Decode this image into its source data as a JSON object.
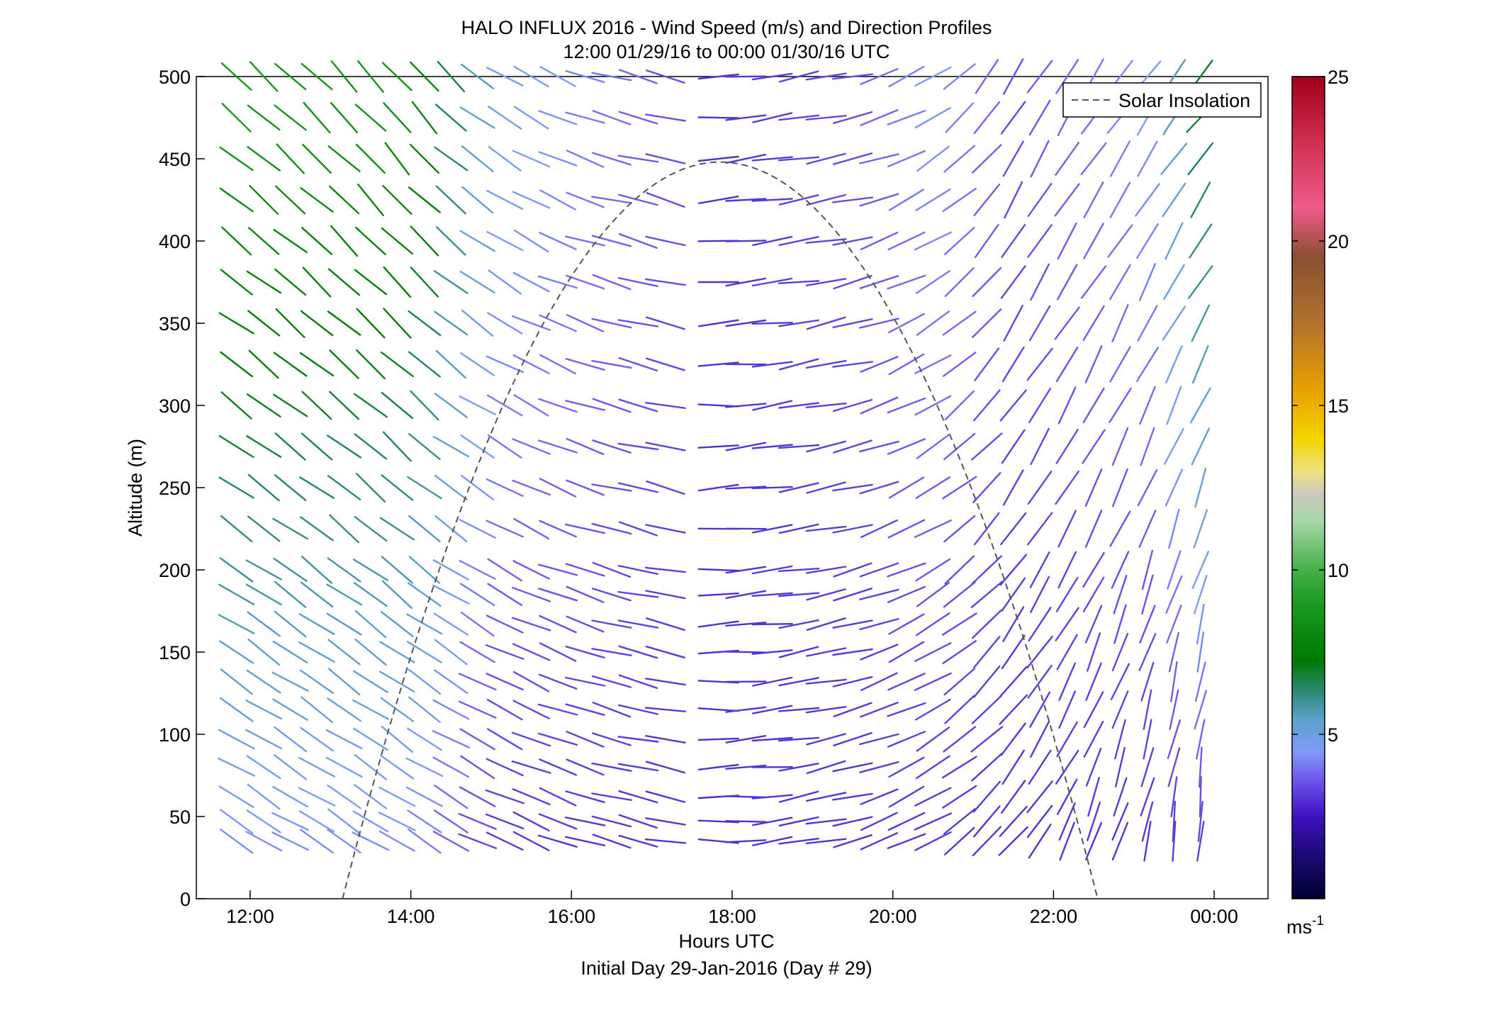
{
  "chart_data": {
    "type": "quiver",
    "title": "HALO INFLUX 2016 - Wind Speed (m/s) and Direction Profiles",
    "subtitle": "12:00 01/29/16 to 00:00 01/30/16  UTC",
    "xlabel": "Hours UTC",
    "xlabel2": "Initial Day 29-Jan-2016 (Day # 29)",
    "ylabel": "Altitude (m)",
    "xlim": [
      11.33,
      24.67
    ],
    "ylim": [
      0,
      500
    ],
    "x_ticks": [
      12,
      14,
      16,
      18,
      20,
      22,
      24
    ],
    "x_tick_labels": [
      "12:00",
      "14:00",
      "16:00",
      "18:00",
      "20:00",
      "22:00",
      "00:00"
    ],
    "y_ticks": [
      0,
      50,
      100,
      150,
      200,
      250,
      300,
      350,
      400,
      450,
      500
    ],
    "y_tick_labels": [
      "0",
      "50",
      "100",
      "150",
      "200",
      "250",
      "300",
      "350",
      "400",
      "450",
      "500"
    ],
    "colorbar": {
      "range": [
        0,
        25
      ],
      "ticks": [
        5,
        10,
        15,
        20,
        25
      ],
      "tick_labels": [
        "5",
        "10",
        "15",
        "20",
        "25"
      ],
      "unit": "ms",
      "unit_exp": "-1"
    },
    "legend": {
      "label": "Solar Insolation",
      "position": "top-right",
      "style": "dashed",
      "color": "#555555"
    },
    "solar_insolation": {
      "start_hour": 13.15,
      "end_hour": 22.55,
      "peak_hour": 17.85,
      "peak_altitude": 448
    },
    "profile_times": [
      11.83,
      12.17,
      12.5,
      12.83,
      13.17,
      13.5,
      13.83,
      14.17,
      14.5,
      14.83,
      15.17,
      15.5,
      15.83,
      16.17,
      16.5,
      16.83,
      17.17,
      17.83,
      18.17,
      18.5,
      18.83,
      19.17,
      19.5,
      19.83,
      20.17,
      20.5,
      20.83,
      21.17,
      21.5,
      21.83,
      22.17,
      22.5,
      22.83,
      23.17,
      23.5,
      23.83
    ],
    "altitudes": [
      35,
      47,
      62,
      80,
      97,
      115,
      132,
      150,
      167,
      185,
      200,
      225,
      250,
      275,
      300,
      325,
      350,
      375,
      400,
      425,
      450,
      475,
      500
    ],
    "keyframes": [
      {
        "t": 11.83,
        "dir_low": 120,
        "dir_high": 130,
        "spd_low": 4,
        "spd_high": 9
      },
      {
        "t": 14.0,
        "dir_low": 120,
        "dir_high": 140,
        "spd_low": 4,
        "spd_high": 8.5
      },
      {
        "t": 15.0,
        "dir_low": 115,
        "dir_high": 125,
        "spd_low": 3,
        "spd_high": 5
      },
      {
        "t": 16.5,
        "dir_low": 105,
        "dir_high": 105,
        "spd_low": 3,
        "spd_high": 4
      },
      {
        "t": 17.2,
        "dir_low": 100,
        "dir_high": 105,
        "spd_low": 3,
        "spd_high": 3.5
      },
      {
        "t": 17.8,
        "dir_low": 90,
        "dir_high": 85,
        "spd_low": 3,
        "spd_high": 3
      },
      {
        "t": 19.5,
        "dir_low": 75,
        "dir_high": 78,
        "spd_low": 3,
        "spd_high": 3.5
      },
      {
        "t": 20.5,
        "dir_low": 60,
        "dir_high": 58,
        "spd_low": 3,
        "spd_high": 4.5
      },
      {
        "t": 21.5,
        "dir_low": 40,
        "dir_high": 30,
        "spd_low": 3,
        "spd_high": 3.5
      },
      {
        "t": 22.5,
        "dir_low": 20,
        "dir_high": 35,
        "spd_low": 3,
        "spd_high": 4
      },
      {
        "t": 23.2,
        "dir_low": 10,
        "dir_high": 35,
        "spd_low": 3,
        "spd_high": 4.5
      },
      {
        "t": 23.83,
        "dir_low": 2,
        "dir_high": 40,
        "spd_low": 3,
        "spd_high": 7
      }
    ]
  }
}
